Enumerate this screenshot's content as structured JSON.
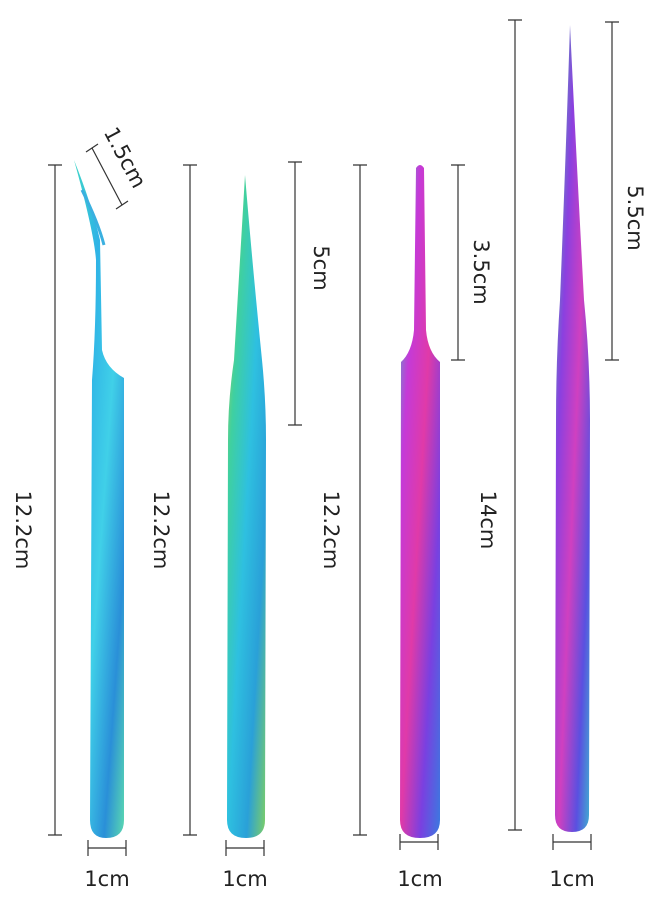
{
  "tweezers": [
    {
      "length": "12.2cm",
      "tip": "1.5cm",
      "width": "1cm"
    },
    {
      "length": "12.2cm",
      "tip": "5cm",
      "width": "1cm"
    },
    {
      "length": "12.2cm",
      "tip": "3.5cm",
      "width": "1cm"
    },
    {
      "length": "14cm",
      "tip": "5.5cm",
      "width": "1cm"
    }
  ]
}
